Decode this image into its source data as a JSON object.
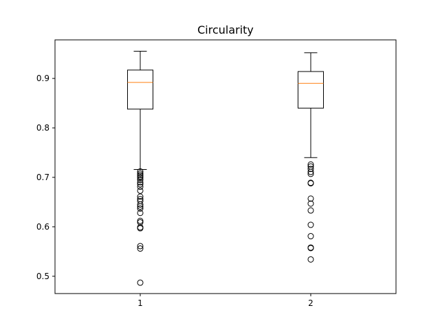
{
  "chart_data": {
    "type": "box",
    "title": "Circularity",
    "xlabel": "",
    "ylabel": "",
    "categories": [
      "1",
      "2"
    ],
    "ylim": [
      0.465,
      0.978
    ],
    "yticks": [
      0.5,
      0.6,
      0.7,
      0.8,
      0.9
    ],
    "ytick_labels": [
      "0.5",
      "0.6",
      "0.7",
      "0.8",
      "0.9"
    ],
    "grid": false,
    "box_color": "#000000",
    "median_color": "#ff7f0e",
    "boxes": [
      {
        "label": "1",
        "whisker_low": 0.716,
        "q1": 0.838,
        "median": 0.892,
        "q3": 0.917,
        "whisker_high": 0.955,
        "outliers": [
          0.712,
          0.708,
          0.705,
          0.702,
          0.699,
          0.695,
          0.69,
          0.686,
          0.681,
          0.673,
          0.661,
          0.656,
          0.652,
          0.645,
          0.641,
          0.637,
          0.628,
          0.612,
          0.609,
          0.599,
          0.597,
          0.561,
          0.556,
          0.487
        ]
      },
      {
        "label": "2",
        "whisker_low": 0.74,
        "q1": 0.84,
        "median": 0.89,
        "q3": 0.914,
        "whisker_high": 0.952,
        "outliers": [
          0.726,
          0.722,
          0.717,
          0.711,
          0.707,
          0.689,
          0.688,
          0.657,
          0.647,
          0.633,
          0.604,
          0.581,
          0.558,
          0.557,
          0.534
        ]
      }
    ]
  }
}
